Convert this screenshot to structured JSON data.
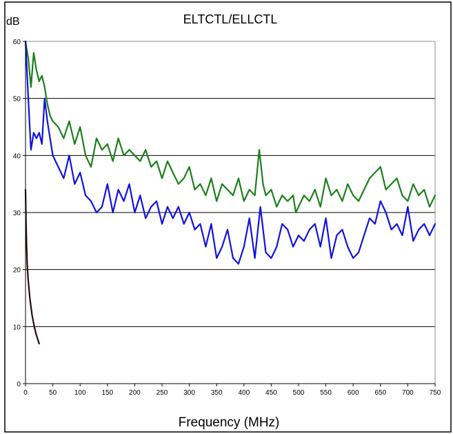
{
  "chart_data": {
    "type": "line",
    "title": "ELTCTL/ELLCTL",
    "xlabel": "Frequency (MHz)",
    "ylabel": "dB",
    "xlim": [
      0,
      750
    ],
    "ylim": [
      0,
      60
    ],
    "x_ticks": [
      0,
      50,
      100,
      150,
      200,
      250,
      300,
      350,
      400,
      450,
      500,
      550,
      600,
      650,
      700,
      750
    ],
    "y_ticks": [
      0,
      10,
      20,
      30,
      40,
      50,
      60
    ],
    "grid": "horizontal",
    "legend": "none",
    "series": [
      {
        "color": "#1a7f1a",
        "x": [
          0,
          5,
          10,
          15,
          20,
          25,
          30,
          35,
          40,
          45,
          50,
          60,
          70,
          80,
          90,
          100,
          110,
          120,
          130,
          140,
          150,
          160,
          170,
          180,
          190,
          200,
          210,
          220,
          230,
          240,
          250,
          260,
          270,
          280,
          290,
          300,
          310,
          320,
          330,
          340,
          350,
          360,
          370,
          380,
          390,
          400,
          410,
          420,
          428,
          435,
          440,
          450,
          460,
          470,
          480,
          490,
          495,
          500,
          510,
          520,
          530,
          540,
          550,
          560,
          570,
          580,
          590,
          600,
          610,
          620,
          630,
          640,
          650,
          660,
          670,
          680,
          690,
          700,
          710,
          720,
          730,
          740,
          750
        ],
        "y": [
          60,
          57,
          52,
          58,
          55,
          53,
          54,
          52,
          49,
          47,
          46,
          45,
          43,
          46,
          42,
          45,
          40,
          38,
          43,
          41,
          42,
          39,
          43,
          40,
          41,
          40,
          39,
          41,
          38,
          39,
          36,
          39,
          37,
          35,
          36,
          38,
          34,
          35,
          33,
          36,
          32,
          35,
          34,
          33,
          36,
          32,
          34,
          33,
          41,
          35,
          33,
          34,
          31,
          33,
          32,
          33,
          30,
          31,
          33,
          32,
          34,
          31,
          36,
          33,
          34,
          32,
          35,
          33,
          32,
          34,
          36,
          37,
          38,
          34,
          35,
          36,
          33,
          32,
          35,
          33,
          34,
          31,
          33
        ]
      },
      {
        "color": "#1010e0",
        "x": [
          0,
          5,
          10,
          15,
          20,
          25,
          30,
          35,
          40,
          50,
          60,
          70,
          80,
          90,
          100,
          110,
          120,
          130,
          140,
          150,
          160,
          170,
          180,
          190,
          200,
          210,
          220,
          230,
          240,
          250,
          260,
          270,
          280,
          290,
          300,
          310,
          320,
          330,
          340,
          350,
          360,
          370,
          380,
          390,
          400,
          410,
          420,
          430,
          440,
          450,
          460,
          470,
          480,
          490,
          500,
          510,
          520,
          530,
          540,
          550,
          560,
          570,
          580,
          590,
          600,
          610,
          620,
          630,
          640,
          650,
          660,
          670,
          680,
          690,
          700,
          710,
          720,
          730,
          740,
          750
        ],
        "y": [
          60,
          50,
          41,
          44,
          43,
          44,
          42,
          50,
          46,
          40,
          38,
          36,
          40,
          35,
          37,
          33,
          32,
          30,
          31,
          35,
          30,
          34,
          32,
          35,
          30,
          33,
          29,
          31,
          32,
          28,
          31,
          29,
          31,
          28,
          30,
          27,
          28,
          24,
          28,
          22,
          24,
          27,
          22,
          21,
          24,
          29,
          22,
          31,
          23,
          22,
          24,
          28,
          27,
          24,
          26,
          25,
          27,
          28,
          24,
          29,
          22,
          26,
          27,
          24,
          22,
          23,
          26,
          29,
          28,
          32,
          30,
          27,
          28,
          26,
          31,
          25,
          27,
          28,
          26,
          28
        ]
      },
      {
        "color": "#2a0a0a",
        "x": [
          0,
          1,
          2,
          3,
          5,
          8,
          12,
          16,
          20,
          25
        ],
        "y": [
          34,
          28,
          24,
          21,
          18,
          15,
          12,
          10,
          8.5,
          7
        ]
      }
    ]
  }
}
